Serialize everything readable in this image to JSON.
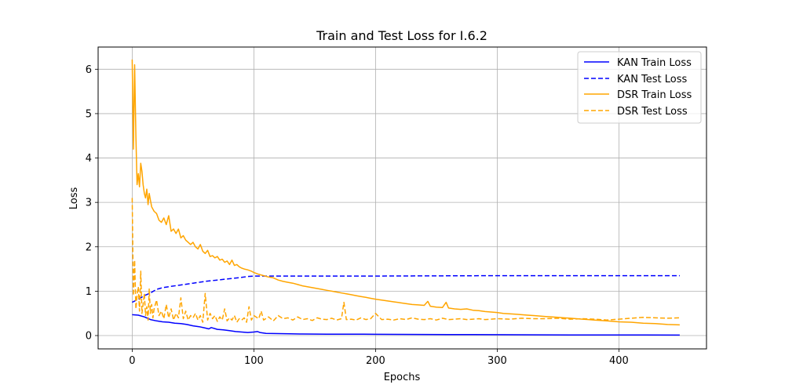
{
  "chart_data": {
    "type": "line",
    "title": "Train and Test Loss for I.6.2",
    "xlabel": "Epochs",
    "ylabel": "Loss",
    "xlim": [
      -28,
      472
    ],
    "ylim": [
      -0.3,
      6.5
    ],
    "xticks": [
      0,
      100,
      200,
      300,
      400
    ],
    "yticks": [
      0,
      1,
      2,
      3,
      4,
      5,
      6
    ],
    "grid": true,
    "legend_position": "top-right",
    "series": [
      {
        "name": "KAN Train Loss",
        "color": "#0000ff",
        "style": "solid",
        "x": [
          0,
          5,
          10,
          15,
          20,
          25,
          30,
          35,
          40,
          45,
          50,
          55,
          60,
          63,
          65,
          70,
          75,
          80,
          85,
          90,
          95,
          100,
          103,
          105,
          110,
          120,
          130,
          140,
          150,
          160,
          170,
          180,
          190,
          200,
          220,
          240,
          260,
          280,
          300,
          320,
          340,
          360,
          380,
          400,
          420,
          450
        ],
        "y": [
          0.47,
          0.46,
          0.42,
          0.36,
          0.33,
          0.31,
          0.3,
          0.28,
          0.27,
          0.25,
          0.22,
          0.2,
          0.17,
          0.15,
          0.18,
          0.14,
          0.13,
          0.11,
          0.09,
          0.08,
          0.07,
          0.08,
          0.09,
          0.07,
          0.05,
          0.045,
          0.04,
          0.035,
          0.033,
          0.032,
          0.031,
          0.03,
          0.03,
          0.028,
          0.026,
          0.025,
          0.023,
          0.021,
          0.02,
          0.018,
          0.016,
          0.015,
          0.014,
          0.013,
          0.012,
          0.011
        ]
      },
      {
        "name": "KAN Test Loss",
        "color": "#0000ff",
        "style": "dashed",
        "x": [
          0,
          5,
          10,
          15,
          20,
          25,
          30,
          40,
          50,
          60,
          70,
          80,
          90,
          95,
          100,
          110,
          150,
          200,
          300,
          400,
          450
        ],
        "y": [
          0.75,
          0.82,
          0.9,
          0.96,
          1.04,
          1.08,
          1.1,
          1.14,
          1.18,
          1.22,
          1.25,
          1.28,
          1.31,
          1.33,
          1.34,
          1.34,
          1.34,
          1.34,
          1.35,
          1.35,
          1.35
        ]
      },
      {
        "name": "DSR Train Loss",
        "color": "#ffa500",
        "style": "solid",
        "x": [
          0,
          1,
          2,
          3,
          4,
          5,
          6,
          7,
          8,
          9,
          10,
          11,
          12,
          13,
          14,
          15,
          16,
          18,
          20,
          22,
          24,
          26,
          28,
          30,
          32,
          34,
          36,
          38,
          40,
          42,
          44,
          46,
          48,
          50,
          52,
          54,
          56,
          58,
          60,
          62,
          64,
          66,
          68,
          70,
          72,
          74,
          76,
          78,
          80,
          82,
          84,
          86,
          88,
          90,
          92,
          95,
          98,
          100,
          104,
          108,
          112,
          116,
          120,
          124,
          128,
          132,
          136,
          140,
          144,
          148,
          152,
          156,
          160,
          164,
          168,
          172,
          176,
          180,
          184,
          188,
          192,
          196,
          200,
          205,
          210,
          215,
          220,
          225,
          230,
          235,
          240,
          243,
          245,
          250,
          255,
          258,
          260,
          265,
          270,
          275,
          280,
          285,
          290,
          295,
          300,
          305,
          310,
          315,
          320,
          325,
          330,
          335,
          340,
          345,
          350,
          355,
          360,
          365,
          370,
          375,
          380,
          385,
          390,
          395,
          400,
          410,
          420,
          430,
          440,
          450
        ],
        "y": [
          6.22,
          4.2,
          6.1,
          4.5,
          3.4,
          3.65,
          3.35,
          3.88,
          3.7,
          3.4,
          3.2,
          3.1,
          3.3,
          2.95,
          3.2,
          3.05,
          2.9,
          2.8,
          2.75,
          2.6,
          2.55,
          2.65,
          2.5,
          2.7,
          2.35,
          2.4,
          2.3,
          2.4,
          2.2,
          2.25,
          2.15,
          2.1,
          2.05,
          2.1,
          2.0,
          1.95,
          2.05,
          1.9,
          1.85,
          1.92,
          1.78,
          1.8,
          1.75,
          1.78,
          1.7,
          1.72,
          1.65,
          1.68,
          1.6,
          1.7,
          1.58,
          1.6,
          1.55,
          1.52,
          1.5,
          1.48,
          1.45,
          1.42,
          1.38,
          1.35,
          1.32,
          1.3,
          1.25,
          1.22,
          1.2,
          1.18,
          1.15,
          1.12,
          1.1,
          1.08,
          1.06,
          1.04,
          1.02,
          1.0,
          0.98,
          0.96,
          0.94,
          0.92,
          0.9,
          0.88,
          0.86,
          0.84,
          0.82,
          0.8,
          0.78,
          0.76,
          0.74,
          0.72,
          0.7,
          0.69,
          0.68,
          0.77,
          0.66,
          0.64,
          0.63,
          0.75,
          0.62,
          0.6,
          0.59,
          0.6,
          0.57,
          0.56,
          0.54,
          0.53,
          0.52,
          0.5,
          0.49,
          0.48,
          0.47,
          0.46,
          0.45,
          0.44,
          0.43,
          0.42,
          0.41,
          0.4,
          0.39,
          0.38,
          0.37,
          0.36,
          0.35,
          0.34,
          0.33,
          0.32,
          0.31,
          0.3,
          0.28,
          0.27,
          0.25,
          0.24
        ]
      },
      {
        "name": "DSR Test Loss",
        "color": "#ffa500",
        "style": "dashed",
        "x": [
          0,
          1,
          2,
          3,
          4,
          5,
          6,
          7,
          8,
          9,
          10,
          11,
          12,
          13,
          14,
          15,
          16,
          17,
          18,
          20,
          22,
          24,
          26,
          28,
          30,
          32,
          34,
          36,
          38,
          40,
          42,
          44,
          46,
          48,
          50,
          52,
          54,
          56,
          58,
          60,
          62,
          64,
          66,
          68,
          70,
          72,
          74,
          76,
          78,
          80,
          82,
          84,
          86,
          88,
          90,
          92,
          94,
          96,
          98,
          100,
          104,
          106,
          108,
          112,
          116,
          120,
          124,
          128,
          132,
          136,
          140,
          144,
          148,
          152,
          156,
          160,
          164,
          168,
          172,
          174,
          176,
          180,
          184,
          188,
          192,
          196,
          200,
          205,
          210,
          215,
          220,
          225,
          230,
          235,
          240,
          245,
          250,
          255,
          260,
          265,
          270,
          275,
          280,
          285,
          290,
          295,
          300,
          310,
          320,
          330,
          340,
          350,
          360,
          370,
          380,
          390,
          400,
          410,
          420,
          430,
          440,
          450
        ],
        "y": [
          3.1,
          0.9,
          1.7,
          0.6,
          0.9,
          1.1,
          0.55,
          1.45,
          0.5,
          0.7,
          0.95,
          0.45,
          0.65,
          0.35,
          1.05,
          0.5,
          0.7,
          0.4,
          0.6,
          0.8,
          0.45,
          0.55,
          0.38,
          0.7,
          0.4,
          0.6,
          0.35,
          0.5,
          0.4,
          0.85,
          0.38,
          0.55,
          0.35,
          0.45,
          0.4,
          0.5,
          0.35,
          0.45,
          0.3,
          0.95,
          0.35,
          0.5,
          0.38,
          0.45,
          0.32,
          0.42,
          0.35,
          0.6,
          0.33,
          0.4,
          0.35,
          0.45,
          0.3,
          0.38,
          0.35,
          0.4,
          0.3,
          0.65,
          0.35,
          0.45,
          0.38,
          0.55,
          0.35,
          0.42,
          0.33,
          0.45,
          0.38,
          0.4,
          0.35,
          0.42,
          0.36,
          0.38,
          0.34,
          0.4,
          0.37,
          0.36,
          0.39,
          0.35,
          0.38,
          0.75,
          0.36,
          0.37,
          0.35,
          0.4,
          0.36,
          0.38,
          0.5,
          0.36,
          0.37,
          0.35,
          0.38,
          0.36,
          0.4,
          0.37,
          0.36,
          0.38,
          0.35,
          0.39,
          0.36,
          0.37,
          0.38,
          0.36,
          0.37,
          0.38,
          0.36,
          0.37,
          0.38,
          0.37,
          0.39,
          0.38,
          0.38,
          0.39,
          0.37,
          0.38,
          0.37,
          0.35,
          0.37,
          0.39,
          0.41,
          0.4,
          0.39,
          0.4
        ]
      }
    ]
  }
}
